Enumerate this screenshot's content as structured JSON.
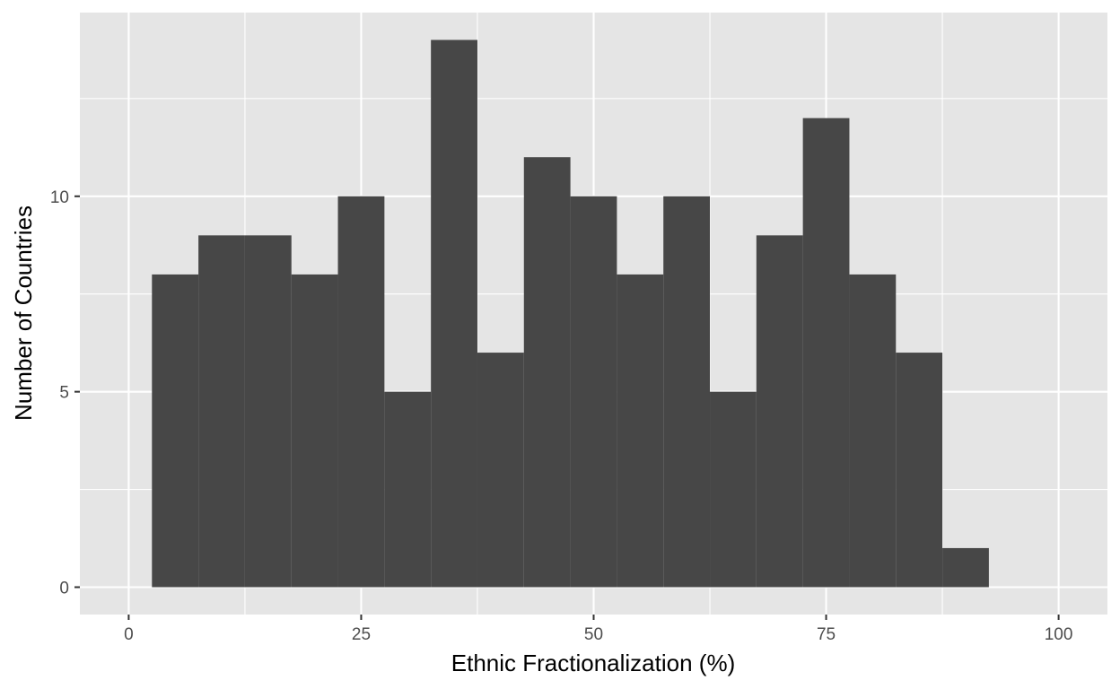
{
  "chart_data": {
    "type": "bar",
    "subtype": "histogram",
    "title": "",
    "xlabel": "Ethnic Fractionalization (%)",
    "ylabel": "Number of Countries",
    "bin_width": 5,
    "bins": [
      {
        "start": 2.5,
        "end": 7.5,
        "count": 8
      },
      {
        "start": 7.5,
        "end": 12.5,
        "count": 9
      },
      {
        "start": 12.5,
        "end": 17.5,
        "count": 9
      },
      {
        "start": 17.5,
        "end": 22.5,
        "count": 8
      },
      {
        "start": 22.5,
        "end": 27.5,
        "count": 10
      },
      {
        "start": 27.5,
        "end": 32.5,
        "count": 5
      },
      {
        "start": 32.5,
        "end": 37.5,
        "count": 14
      },
      {
        "start": 37.5,
        "end": 42.5,
        "count": 6
      },
      {
        "start": 42.5,
        "end": 47.5,
        "count": 11
      },
      {
        "start": 47.5,
        "end": 52.5,
        "count": 10
      },
      {
        "start": 52.5,
        "end": 57.5,
        "count": 8
      },
      {
        "start": 57.5,
        "end": 62.5,
        "count": 10
      },
      {
        "start": 62.5,
        "end": 67.5,
        "count": 5
      },
      {
        "start": 67.5,
        "end": 72.5,
        "count": 9
      },
      {
        "start": 72.5,
        "end": 77.5,
        "count": 12
      },
      {
        "start": 77.5,
        "end": 82.5,
        "count": 8
      },
      {
        "start": 82.5,
        "end": 87.5,
        "count": 6
      },
      {
        "start": 87.5,
        "end": 92.5,
        "count": 1
      }
    ],
    "x_ticks": [
      0,
      25,
      50,
      75,
      100
    ],
    "y_ticks": [
      0,
      5,
      10
    ],
    "xlim": [
      -5.25,
      105.25
    ],
    "ylim": [
      -0.7,
      14.7
    ],
    "grid": true,
    "colors": {
      "panel_background": "#e5e5e5",
      "grid_line": "#ffffff",
      "bar_fill": "#474747",
      "tick_color": "#333333",
      "tick_label_color": "#4d4d4d"
    }
  }
}
